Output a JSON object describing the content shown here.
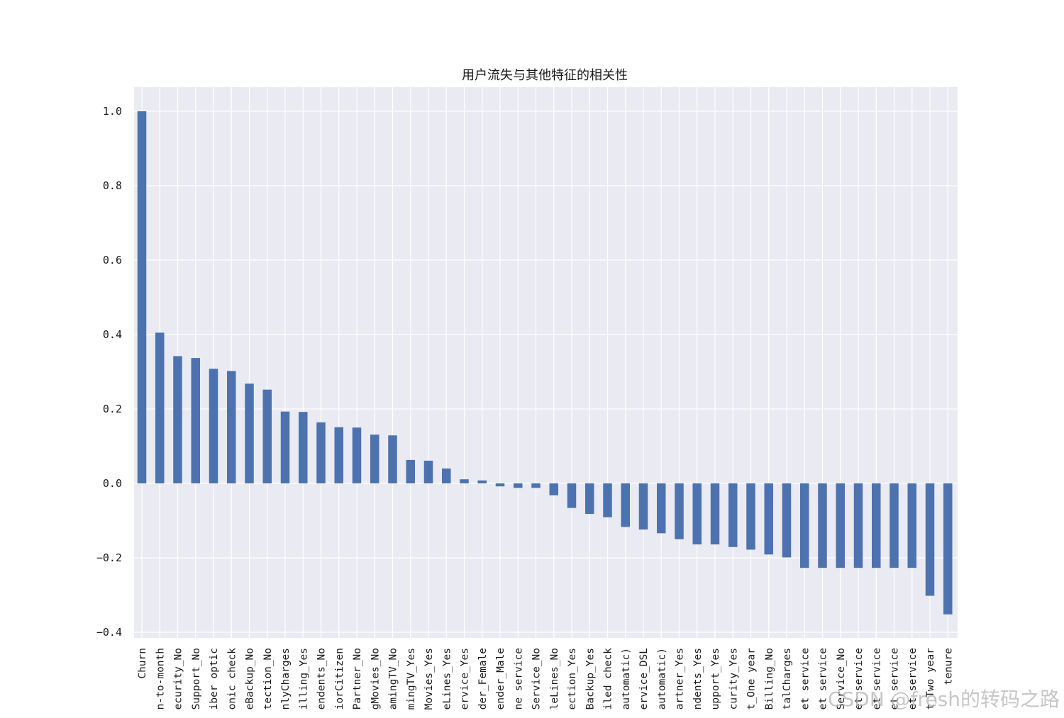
{
  "chart_data": {
    "type": "bar",
    "title": "用户流失与其他特征的相关性",
    "xlabel": "",
    "ylabel": "",
    "ylim": [
      -0.42,
      1.07
    ],
    "yticks": [
      -0.4,
      -0.2,
      0.0,
      0.2,
      0.4,
      0.6,
      0.8,
      1.0
    ],
    "ytick_labels": [
      "−0.4",
      "−0.2",
      "0.0",
      "0.2",
      "0.4",
      "0.6",
      "0.8",
      "1.0"
    ],
    "grid": true,
    "colors": {
      "bar": "#4c72b0",
      "background": "#eaeaf2",
      "grid": "#ffffff"
    },
    "categories": [
      "Churn",
      "n-to-month",
      "ecurity_No",
      "Support_No",
      "iber optic",
      "onic check",
      "eBackup_No",
      "tection_No",
      "nlyCharges",
      "illing_Yes",
      "endents_No",
      "iorCitizen",
      "Partner_No",
      "gMovies_No",
      "amingTV_No",
      "mingTV_Yes",
      "Movies_Yes",
      "eLines_Yes",
      "ervice_Yes",
      "der_Female",
      "ender_Male",
      "ne service",
      "Service_No",
      "leLines_No",
      "ection_Yes",
      "Backup_Yes",
      "iled check",
      "automatic)",
      "ervice_DSL",
      "automatic)",
      "artner_Yes",
      "ndents_Yes",
      "upport_Yes",
      "curity_Yes",
      "t_One year",
      "Billing_No",
      "talCharges",
      "et service",
      "et service",
      "Service_No",
      "et service",
      "et service",
      "et service",
      "et service",
      "t_Two year",
      "tenure"
    ],
    "values": [
      1.0,
      0.405,
      0.342,
      0.337,
      0.308,
      0.302,
      0.268,
      0.252,
      0.193,
      0.192,
      0.164,
      0.151,
      0.15,
      0.131,
      0.129,
      0.063,
      0.061,
      0.04,
      0.011,
      0.008,
      -0.008,
      -0.012,
      -0.012,
      -0.032,
      -0.066,
      -0.082,
      -0.091,
      -0.117,
      -0.124,
      -0.134,
      -0.15,
      -0.164,
      -0.164,
      -0.171,
      -0.178,
      -0.191,
      -0.199,
      -0.227,
      -0.227,
      -0.227,
      -0.227,
      -0.227,
      -0.227,
      -0.227,
      -0.302,
      -0.352
    ]
  },
  "watermark": "CSDN @fresh的转码之路"
}
